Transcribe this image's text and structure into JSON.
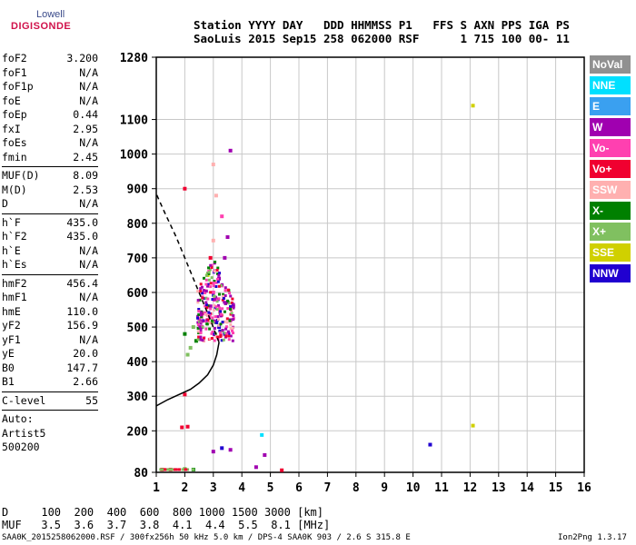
{
  "logo": {
    "line1": "Lowell",
    "line2": "DIGISONDE"
  },
  "header": {
    "line1": "Station YYYY DAY   DDD HHMMSS P1   FFS S AXN PPS IGA PS",
    "line2": "SaoLuis 2015 Sep15 258 062000 RSF      1 715 100 00- 11"
  },
  "params": [
    [
      {
        "k": "foF2",
        "v": "3.200"
      },
      {
        "k": "foF1",
        "v": "N/A"
      },
      {
        "k": "foF1p",
        "v": "N/A"
      },
      {
        "k": "foE",
        "v": "N/A"
      },
      {
        "k": "foEp",
        "v": "0.44"
      },
      {
        "k": "fxI",
        "v": "2.95"
      },
      {
        "k": "foEs",
        "v": "N/A"
      },
      {
        "k": "fmin",
        "v": "2.45"
      }
    ],
    [
      {
        "k": "MUF(D)",
        "v": "8.09"
      },
      {
        "k": "M(D)",
        "v": "2.53"
      },
      {
        "k": "D",
        "v": "N/A"
      }
    ],
    [
      {
        "k": "h`F",
        "v": "435.0"
      },
      {
        "k": "h`F2",
        "v": "435.0"
      },
      {
        "k": "h`E",
        "v": "N/A"
      },
      {
        "k": "h`Es",
        "v": "N/A"
      }
    ],
    [
      {
        "k": "hmF2",
        "v": "456.4"
      },
      {
        "k": "hmF1",
        "v": "N/A"
      },
      {
        "k": "hmE",
        "v": "110.0"
      },
      {
        "k": "yF2",
        "v": "156.9"
      },
      {
        "k": "yF1",
        "v": "N/A"
      },
      {
        "k": "yE",
        "v": "20.0"
      },
      {
        "k": "B0",
        "v": "147.7"
      },
      {
        "k": "B1",
        "v": "2.66"
      }
    ],
    [
      {
        "k": "C-level",
        "v": "55"
      }
    ]
  ],
  "auto": [
    "Auto:",
    "Artist5",
    "500200"
  ],
  "legend": [
    {
      "label": "NoVal",
      "color": "#909090"
    },
    {
      "label": "NNE",
      "color": "#00e0ff"
    },
    {
      "label": "E",
      "color": "#3aa0f0"
    },
    {
      "label": "W",
      "color": "#a000b0"
    },
    {
      "label": "Vo-",
      "color": "#ff40b0"
    },
    {
      "label": "Vo+",
      "color": "#f00030"
    },
    {
      "label": "SSW",
      "color": "#ffb0b0"
    },
    {
      "label": "X-",
      "color": "#008000"
    },
    {
      "label": "X+",
      "color": "#80c060"
    },
    {
      "label": "SSE",
      "color": "#d0d000"
    },
    {
      "label": "NNW",
      "color": "#2000d0"
    }
  ],
  "footer": {
    "d_line": "D     100  200  400  600  800 1000 1500 3000 [km]",
    "muf_line": "MUF   3.5  3.6  3.7  3.8  4.1  4.4  5.5  8.1 [MHz]",
    "file_line": "SAA0K_2015258062000.RSF / 300fx256h 50 kHz 5.0 km / DPS-4 SAA0K 903 / 2.6 S 315.8 E",
    "version": "Ion2Png 1.3.17"
  },
  "chart_data": {
    "type": "scatter",
    "xlim": [
      1,
      16
    ],
    "ylim": [
      80,
      1280
    ],
    "x_ticks": [
      1,
      2,
      3,
      4,
      5,
      6,
      7,
      8,
      9,
      10,
      11,
      12,
      13,
      14,
      15,
      16
    ],
    "y_ticks": [
      80,
      200,
      300,
      400,
      500,
      600,
      700,
      800,
      900,
      1000,
      1100,
      1280
    ],
    "grid": true,
    "profile_curve": [
      [
        1.0,
        272
      ],
      [
        1.4,
        290
      ],
      [
        1.8,
        305
      ],
      [
        2.2,
        320
      ],
      [
        2.5,
        338
      ],
      [
        2.8,
        362
      ],
      [
        3.0,
        390
      ],
      [
        3.12,
        420
      ],
      [
        3.2,
        456
      ]
    ],
    "profile_dashed": [
      [
        3.2,
        456
      ],
      [
        2.9,
        520
      ],
      [
        2.5,
        600
      ],
      [
        2.1,
        680
      ],
      [
        1.7,
        760
      ],
      [
        1.3,
        830
      ],
      [
        1.0,
        885
      ]
    ],
    "scatter_points": [
      {
        "x": 2.6,
        "y": 500,
        "c": "W"
      },
      {
        "x": 2.7,
        "y": 540,
        "c": "Vo-"
      },
      {
        "x": 2.8,
        "y": 520,
        "c": "Vo+"
      },
      {
        "x": 2.9,
        "y": 560,
        "c": "W"
      },
      {
        "x": 3.0,
        "y": 600,
        "c": "Vo-"
      },
      {
        "x": 3.1,
        "y": 580,
        "c": "W"
      },
      {
        "x": 3.2,
        "y": 640,
        "c": "W"
      },
      {
        "x": 3.3,
        "y": 620,
        "c": "Vo-"
      },
      {
        "x": 2.5,
        "y": 470,
        "c": "Vo+"
      },
      {
        "x": 2.4,
        "y": 460,
        "c": "X-"
      },
      {
        "x": 2.3,
        "y": 500,
        "c": "X+"
      },
      {
        "x": 2.2,
        "y": 440,
        "c": "X+"
      },
      {
        "x": 2.1,
        "y": 420,
        "c": "X+"
      },
      {
        "x": 2.0,
        "y": 480,
        "c": "X-"
      },
      {
        "x": 3.4,
        "y": 700,
        "c": "W"
      },
      {
        "x": 3.5,
        "y": 760,
        "c": "W"
      },
      {
        "x": 3.3,
        "y": 820,
        "c": "Vo-"
      },
      {
        "x": 3.1,
        "y": 880,
        "c": "SSW"
      },
      {
        "x": 3.6,
        "y": 520,
        "c": "W"
      },
      {
        "x": 3.7,
        "y": 560,
        "c": "W"
      },
      {
        "x": 2.8,
        "y": 650,
        "c": "SSE"
      },
      {
        "x": 2.9,
        "y": 700,
        "c": "Vo+"
      },
      {
        "x": 3.0,
        "y": 750,
        "c": "SSW"
      },
      {
        "x": 3.2,
        "y": 500,
        "c": "NNW"
      },
      {
        "x": 3.4,
        "y": 480,
        "c": "NNW"
      },
      {
        "x": 3.6,
        "y": 1010,
        "c": "W"
      },
      {
        "x": 3.0,
        "y": 970,
        "c": "SSW"
      },
      {
        "x": 2.0,
        "y": 900,
        "c": "Vo+"
      },
      {
        "x": 12.1,
        "y": 1140,
        "c": "SSE"
      },
      {
        "x": 12.1,
        "y": 215,
        "c": "SSE"
      },
      {
        "x": 10.6,
        "y": 160,
        "c": "NNW"
      },
      {
        "x": 4.7,
        "y": 188,
        "c": "NNE"
      },
      {
        "x": 1.9,
        "y": 210,
        "c": "Vo+"
      },
      {
        "x": 2.1,
        "y": 212,
        "c": "Vo+"
      },
      {
        "x": 2.0,
        "y": 305,
        "c": "Vo+"
      },
      {
        "x": 1.2,
        "y": 88,
        "c": "Vo+"
      },
      {
        "x": 1.5,
        "y": 88,
        "c": "Vo+"
      },
      {
        "x": 2.0,
        "y": 90,
        "c": "X+"
      },
      {
        "x": 2.3,
        "y": 88,
        "c": "X-"
      },
      {
        "x": 3.0,
        "y": 140,
        "c": "W"
      },
      {
        "x": 3.3,
        "y": 150,
        "c": "NNW"
      },
      {
        "x": 3.6,
        "y": 145,
        "c": "W"
      },
      {
        "x": 4.8,
        "y": 130,
        "c": "W"
      },
      {
        "x": 5.4,
        "y": 86,
        "c": "Vo+"
      },
      {
        "x": 4.5,
        "y": 95,
        "c": "W"
      }
    ]
  }
}
